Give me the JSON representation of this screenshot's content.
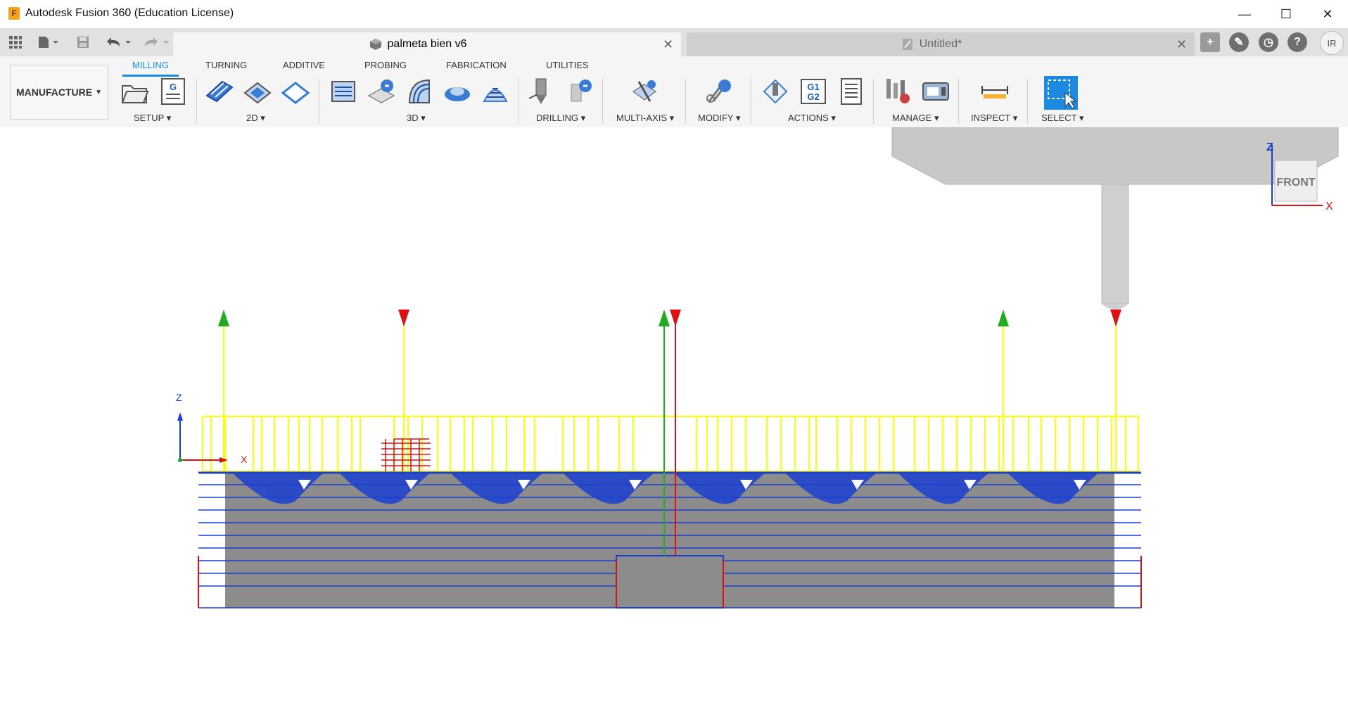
{
  "app": {
    "title": "Autodesk Fusion 360 (Education License)",
    "icon_letter": "F"
  },
  "window_controls": {
    "minimize": "—",
    "maximize": "☐",
    "close": "✕"
  },
  "documents": [
    {
      "label": "palmeta bien v6",
      "active": true
    },
    {
      "label": "Untitled*",
      "active": false
    }
  ],
  "user": {
    "initials": "IR"
  },
  "workspace": {
    "label": "MANUFACTURE"
  },
  "ribbon_tabs": [
    "MILLING",
    "TURNING",
    "ADDITIVE",
    "PROBING",
    "FABRICATION",
    "UTILITIES"
  ],
  "ribbon_groups": [
    "SETUP",
    "2D",
    "3D",
    "DRILLING",
    "MULTI-AXIS",
    "MODIFY",
    "ACTIONS",
    "MANAGE",
    "INSPECT",
    "SELECT"
  ],
  "actions_icon_text": {
    "g": "G",
    "g1g2_top": "G1",
    "g1g2_bottom": "G2"
  },
  "viewcube": {
    "face": "FRONT",
    "z": "Z",
    "x": "X"
  },
  "triad": {
    "z": "Z",
    "x": "X"
  },
  "colors": {
    "accent": "#1b8ae0",
    "toolpath_rapid": "#ffff00",
    "toolpath_cut": "#1a3fd1",
    "lead": "#22aa22",
    "plunge": "#dd1111",
    "stock": "#8c8c8c"
  }
}
